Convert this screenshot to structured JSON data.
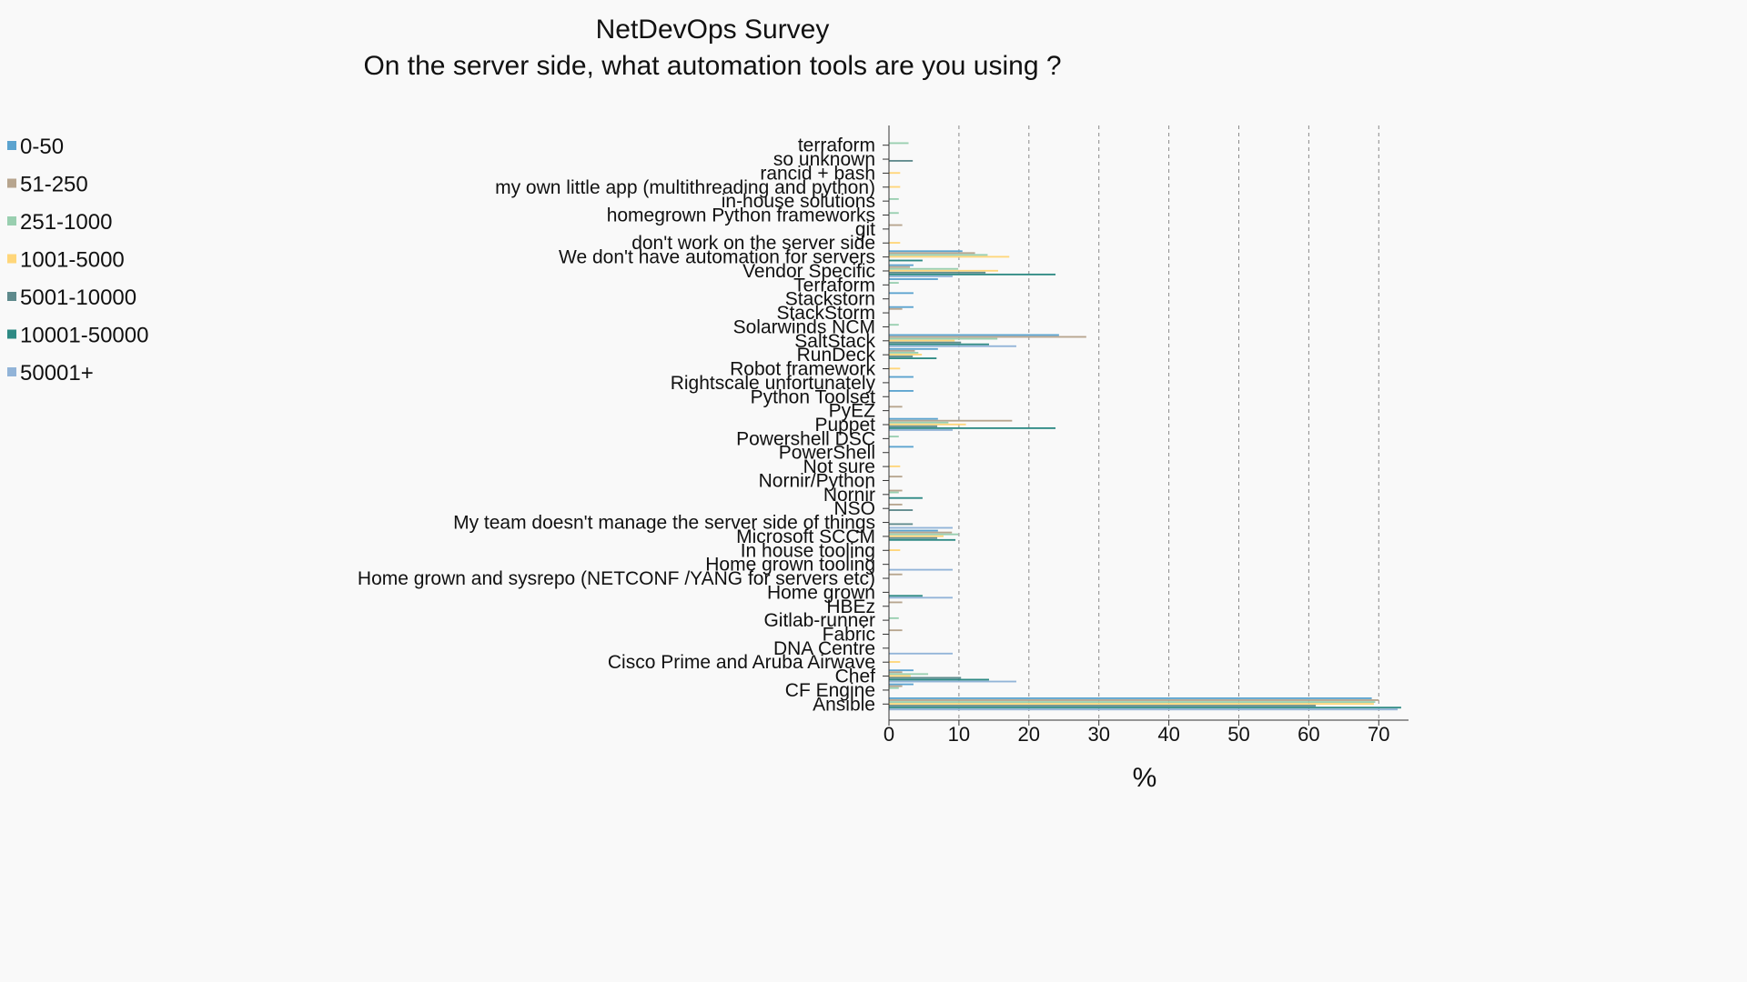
{
  "chart_data": {
    "type": "bar",
    "orientation": "horizontal",
    "title": "NetDevOps Survey",
    "subtitle": "On the server side, what automation tools are you using ?",
    "xlabel": "%",
    "ylabel": "",
    "xlim": [
      0,
      74
    ],
    "xticks": [
      0,
      10,
      20,
      30,
      40,
      50,
      60,
      70
    ],
    "grid": "vertical dashed",
    "legend_placement": "left",
    "categories": [
      "terraform",
      "so unknown",
      "rancid + bash",
      "my own little app (multithreading and python)",
      "in-house solutions",
      "homegrown Python frameworks",
      "git",
      "don't work on the server side",
      "We don't have automation for servers",
      "Vendor Specific",
      "Terraform",
      "Stackstorn",
      "StackStorm",
      "Solarwinds NCM",
      "SaltStack",
      "RunDeck",
      "Robot framework",
      "Rightscale unfortunately",
      "Python Toolset",
      "PyEZ",
      "Puppet",
      "Powershell DSC",
      "PowerShell",
      "Not sure",
      "Nornir/Python",
      "Nornir",
      "NSO",
      "My team doesn't manage the server side of things",
      "Microsoft SCCM",
      "In house tooling",
      "Home grown tooling",
      "Home grown and sysrepo (NETCONF /YANG for servers etc)",
      "Home grown",
      "HBEz",
      "Gitlab-runner",
      "Fabric",
      "DNA Centre",
      "Cisco Prime and Aruba Airwave",
      "Chef",
      "CF Engine",
      "Ansible"
    ],
    "series": [
      {
        "name": "0-50",
        "color": "#5ba3cf",
        "values": [
          0,
          0,
          0,
          0,
          0,
          0,
          0,
          0,
          10.5,
          3.5,
          7,
          3.5,
          3.5,
          0,
          24.3,
          7,
          0,
          3.5,
          3.5,
          0,
          7,
          0,
          3.5,
          0,
          0,
          0,
          0,
          0,
          7,
          0,
          0,
          0,
          0,
          0,
          0,
          0,
          0,
          0,
          3.5,
          3.5,
          69
        ]
      },
      {
        "name": "51-250",
        "color": "#b7a58e",
        "values": [
          0,
          0,
          0,
          0,
          0,
          0,
          1.9,
          0,
          12.3,
          3,
          0,
          0,
          1.9,
          0,
          28.2,
          3.7,
          0,
          0,
          0,
          1.9,
          17.6,
          0,
          0,
          0,
          1.9,
          1.9,
          1.9,
          0,
          9,
          0,
          0,
          1.9,
          0,
          1.9,
          0,
          1.9,
          0,
          0,
          1.9,
          1.9,
          70
        ]
      },
      {
        "name": "251-1000",
        "color": "#99cfb0",
        "values": [
          2.8,
          0,
          0,
          0,
          1.4,
          1.4,
          0,
          0,
          14.1,
          9.9,
          1.4,
          0,
          0,
          1.4,
          15.5,
          4.2,
          0,
          0,
          0,
          0,
          8.5,
          1.4,
          0,
          0,
          0,
          1.4,
          0,
          0,
          9.9,
          0,
          0,
          0,
          0,
          0,
          1.4,
          0,
          0,
          0,
          5.6,
          1.4,
          69.5
        ]
      },
      {
        "name": "1001-5000",
        "color": "#ffd67a",
        "values": [
          0,
          0,
          1.6,
          1.6,
          0,
          0,
          0,
          1.6,
          17.2,
          15.6,
          0,
          0,
          0,
          0,
          9.4,
          4.7,
          1.6,
          0,
          0,
          0,
          11,
          0,
          0,
          1.6,
          0,
          0,
          0,
          0,
          7.8,
          1.6,
          0,
          0,
          0,
          0,
          0,
          0,
          0,
          1.6,
          3.1,
          0,
          69.3
        ]
      },
      {
        "name": "5001-10000",
        "color": "#5e8a8c",
        "values": [
          0,
          3.4,
          0,
          0,
          0,
          0,
          0,
          0,
          0,
          13.8,
          0,
          0,
          0,
          0,
          10.3,
          3.4,
          0,
          0,
          0,
          0,
          6.9,
          0,
          0,
          0,
          0,
          0,
          3.4,
          3.4,
          6.9,
          0,
          0,
          0,
          0,
          0,
          0,
          0,
          0,
          0,
          10.3,
          0,
          61
        ]
      },
      {
        "name": "10001-50000",
        "color": "#2e8a84",
        "values": [
          0,
          0,
          0,
          0,
          0,
          0,
          0,
          0,
          4.8,
          23.8,
          0,
          0,
          0,
          0,
          14.3,
          6.8,
          0,
          0,
          0,
          0,
          23.8,
          0,
          0,
          0,
          0,
          4.8,
          0,
          0,
          9.5,
          0,
          0,
          0,
          4.8,
          0,
          0,
          0,
          0,
          0,
          14.3,
          0,
          73.2
        ]
      },
      {
        "name": "50001+",
        "color": "#92b4d8",
        "values": [
          0,
          0,
          0,
          0,
          0,
          0,
          0,
          0,
          0,
          9.1,
          0,
          0,
          0,
          0,
          18.2,
          0,
          0,
          0,
          0,
          0,
          9.1,
          0,
          0,
          0,
          0,
          0,
          0,
          9.1,
          0,
          0,
          9.1,
          0,
          9.1,
          0,
          0,
          0,
          9.1,
          0,
          18.2,
          0,
          72.7
        ]
      }
    ]
  }
}
